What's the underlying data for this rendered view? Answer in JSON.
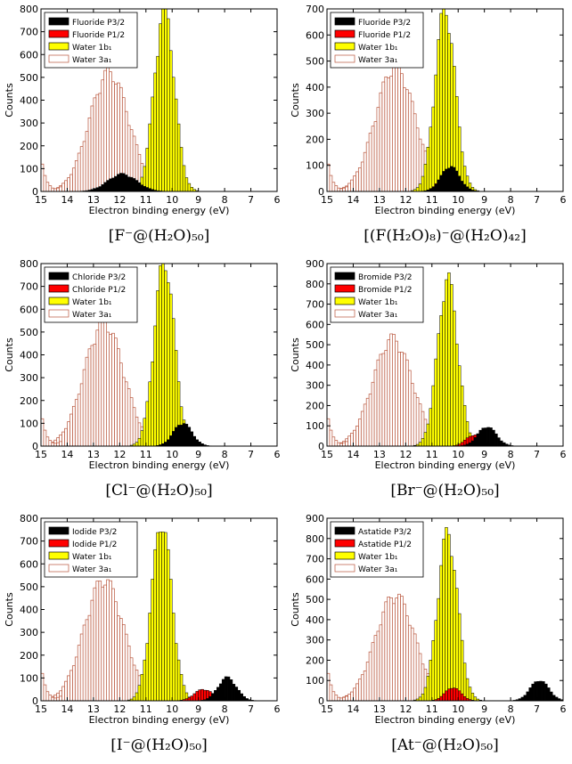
{
  "colors": {
    "anion_p32": "#000000",
    "anion_p12": "#ff0000",
    "water_1b1": "#ffff00",
    "water_3a1_edge": "#b8543a",
    "water_3a1_fill": "#ffffff",
    "edge": "#000000"
  },
  "chart_data": [
    {
      "type": "bar",
      "ylabel": "Counts",
      "xlabel": "Electron binding energy (eV)",
      "xlim": [
        15,
        6
      ],
      "xticks": [
        15,
        14,
        13,
        12,
        11,
        10,
        9,
        8,
        7,
        6
      ],
      "ylim": [
        0,
        800
      ],
      "yticks": [
        0,
        100,
        200,
        300,
        400,
        500,
        600,
        700,
        800
      ],
      "caption": "[F⁻@(H₂O)₅₀]",
      "legend_placement": "top-left",
      "legend": [
        {
          "label": "Fluoride P3/2",
          "key": "p32"
        },
        {
          "label": "Fluoride P1/2",
          "key": "p12"
        },
        {
          "label": "Water 1b₁",
          "key": "w1"
        },
        {
          "label": "Water 3a₁",
          "key": "w3"
        }
      ],
      "series": {
        "w3": {
          "center": 12.4,
          "width": 0.75,
          "peak": 510
        },
        "w1": {
          "center": 10.3,
          "width": 0.38,
          "peak": 790
        },
        "p32": {
          "center": 11.9,
          "width": 0.55,
          "peak": 75
        },
        "p12": {
          "center": 12.0,
          "width": 0.5,
          "peak": 45
        }
      }
    },
    {
      "type": "bar",
      "ylabel": "Counts",
      "xlabel": "Electron binding energy (eV)",
      "xlim": [
        15,
        6
      ],
      "xticks": [
        15,
        14,
        13,
        12,
        11,
        10,
        9,
        8,
        7,
        6
      ],
      "ylim": [
        0,
        700
      ],
      "yticks": [
        0,
        100,
        200,
        300,
        400,
        500,
        600,
        700
      ],
      "caption": "[(F(H₂O)₈)⁻@(H₂O)₄₂]",
      "legend_placement": "top-left",
      "legend": [
        {
          "label": "Fluoride P3/2",
          "key": "p32"
        },
        {
          "label": "Fluoride P1/2",
          "key": "p12"
        },
        {
          "label": "Water 1b₁",
          "key": "w1"
        },
        {
          "label": "Water 3a₁",
          "key": "w3"
        }
      ],
      "series": {
        "w3": {
          "center": 12.4,
          "width": 0.75,
          "peak": 470
        },
        "w1": {
          "center": 10.5,
          "width": 0.38,
          "peak": 690
        },
        "p32": {
          "center": 10.3,
          "width": 0.35,
          "peak": 95
        },
        "p12": {
          "center": 10.5,
          "width": 0.3,
          "peak": 60
        }
      }
    },
    {
      "type": "bar",
      "ylabel": "Counts",
      "xlabel": "Electron binding energy (eV)",
      "xlim": [
        15,
        6
      ],
      "xticks": [
        15,
        14,
        13,
        12,
        11,
        10,
        9,
        8,
        7,
        6
      ],
      "ylim": [
        0,
        800
      ],
      "yticks": [
        0,
        100,
        200,
        300,
        400,
        500,
        600,
        700,
        800
      ],
      "caption": "[Cl⁻@(H₂O)₅₀]",
      "legend_placement": "top-left",
      "legend": [
        {
          "label": "Chloride P3/2",
          "key": "p32"
        },
        {
          "label": "Chloride P1/2",
          "key": "p12"
        },
        {
          "label": "Water 1b₁",
          "key": "w1"
        },
        {
          "label": "Water 3a₁",
          "key": "w3"
        }
      ],
      "series": {
        "w3": {
          "center": 12.6,
          "width": 0.75,
          "peak": 530
        },
        "w1": {
          "center": 10.3,
          "width": 0.38,
          "peak": 800
        },
        "p32": {
          "center": 9.6,
          "width": 0.35,
          "peak": 100
        },
        "p12": {
          "center": 9.8,
          "width": 0.3,
          "peak": 55
        }
      }
    },
    {
      "type": "bar",
      "ylabel": "Counts",
      "xlabel": "Electron binding energy (eV)",
      "xlim": [
        15,
        6
      ],
      "xticks": [
        15,
        14,
        13,
        12,
        11,
        10,
        9,
        8,
        7,
        6
      ],
      "ylim": [
        0,
        900
      ],
      "yticks": [
        0,
        100,
        200,
        300,
        400,
        500,
        600,
        700,
        800,
        900
      ],
      "caption": "[Br⁻@(H₂O)₅₀]",
      "legend_placement": "top-left",
      "legend": [
        {
          "label": "Bromide P3/2",
          "key": "p32"
        },
        {
          "label": "Bromide P1/2",
          "key": "p12"
        },
        {
          "label": "Water 1b₁",
          "key": "w1"
        },
        {
          "label": "Water 3a₁",
          "key": "w3"
        }
      ],
      "series": {
        "w3": {
          "center": 12.5,
          "width": 0.75,
          "peak": 520
        },
        "w1": {
          "center": 10.4,
          "width": 0.38,
          "peak": 810
        },
        "p32": {
          "center": 8.9,
          "width": 0.35,
          "peak": 95
        },
        "p12": {
          "center": 9.4,
          "width": 0.3,
          "peak": 55
        }
      }
    },
    {
      "type": "bar",
      "ylabel": "Counts",
      "xlabel": "Electron binding energy (eV)",
      "xlim": [
        15,
        6
      ],
      "xticks": [
        15,
        14,
        13,
        12,
        11,
        10,
        9,
        8,
        7,
        6
      ],
      "ylim": [
        0,
        800
      ],
      "yticks": [
        0,
        100,
        200,
        300,
        400,
        500,
        600,
        700,
        800
      ],
      "caption": "[I⁻@(H₂O)₅₀]",
      "legend_placement": "top-left",
      "legend": [
        {
          "label": "Iodide P3/2",
          "key": "p32"
        },
        {
          "label": "Iodide P1/2",
          "key": "p12"
        },
        {
          "label": "Water 1b₁",
          "key": "w1"
        },
        {
          "label": "Water 3a₁",
          "key": "w3"
        }
      ],
      "series": {
        "w3": {
          "center": 12.6,
          "width": 0.75,
          "peak": 520
        },
        "w1": {
          "center": 10.4,
          "width": 0.38,
          "peak": 770
        },
        "p32": {
          "center": 7.9,
          "width": 0.35,
          "peak": 100
        },
        "p12": {
          "center": 8.8,
          "width": 0.35,
          "peak": 50
        }
      }
    },
    {
      "type": "bar",
      "ylabel": "Counts",
      "xlabel": "Electron binding energy (eV)",
      "xlim": [
        15,
        6
      ],
      "xticks": [
        15,
        14,
        13,
        12,
        11,
        10,
        9,
        8,
        7,
        6
      ],
      "ylim": [
        0,
        900
      ],
      "yticks": [
        0,
        100,
        200,
        300,
        400,
        500,
        600,
        700,
        800,
        900
      ],
      "caption": "[At⁻@(H₂O)₅₀]",
      "legend_placement": "top-left",
      "legend": [
        {
          "label": "Astatide P3/2",
          "key": "p32"
        },
        {
          "label": "Astatide P1/2",
          "key": "p12"
        },
        {
          "label": "Water 1b₁",
          "key": "w1"
        },
        {
          "label": "Water 3a₁",
          "key": "w3"
        }
      ],
      "series": {
        "w3": {
          "center": 12.4,
          "width": 0.75,
          "peak": 510
        },
        "w1": {
          "center": 10.4,
          "width": 0.38,
          "peak": 810
        },
        "p32": {
          "center": 6.9,
          "width": 0.35,
          "peak": 100
        },
        "p12": {
          "center": 10.2,
          "width": 0.3,
          "peak": 65
        }
      }
    }
  ]
}
